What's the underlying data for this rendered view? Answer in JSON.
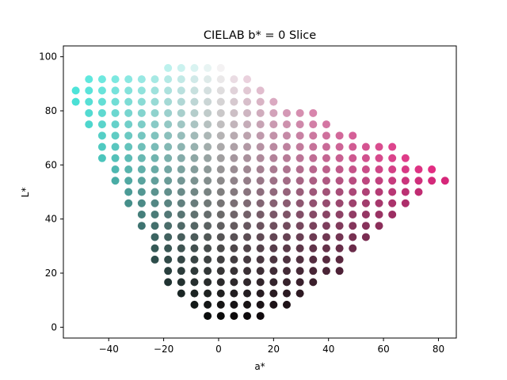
{
  "chart_data": {
    "type": "scatter",
    "title": "CIELAB b* = 0 Slice",
    "xlabel": "a*",
    "ylabel": "L*",
    "xlim": [
      -56.5,
      86.5
    ],
    "ylim": [
      -4,
      104
    ],
    "xticks": [
      -40,
      -20,
      0,
      20,
      40,
      60,
      80
    ],
    "yticks": [
      0,
      20,
      40,
      60,
      80,
      100
    ],
    "grid": false,
    "legend": "none",
    "sampling": {
      "a_start": -52,
      "a_step": 4.8,
      "L_start": 4.166,
      "L_step": 4.166,
      "description": "points plotted where color is within sRGB gamut"
    },
    "rows": [
      {
        "L": 4.17,
        "a_min": -4.4,
        "a_max": 15.4
      },
      {
        "L": 8.33,
        "a_min": -9.2,
        "a_max": 25.0
      },
      {
        "L": 12.5,
        "a_min": -14.0,
        "a_max": 29.8
      },
      {
        "L": 16.67,
        "a_min": -18.8,
        "a_max": 34.6
      },
      {
        "L": 20.83,
        "a_min": -18.8,
        "a_max": 44.2
      },
      {
        "L": 25.0,
        "a_min": -23.6,
        "a_max": 44.2
      },
      {
        "L": 29.17,
        "a_min": -23.6,
        "a_max": 49.0
      },
      {
        "L": 33.33,
        "a_min": -23.6,
        "a_max": 53.8
      },
      {
        "L": 37.5,
        "a_min": -28.4,
        "a_max": 58.6
      },
      {
        "L": 41.67,
        "a_min": -28.4,
        "a_max": 63.4
      },
      {
        "L": 45.83,
        "a_min": -33.2,
        "a_max": 68.2
      },
      {
        "L": 50.0,
        "a_min": -33.2,
        "a_max": 73.0
      },
      {
        "L": 54.17,
        "a_min": -38.0,
        "a_max": 82.6
      },
      {
        "L": 58.33,
        "a_min": -38.0,
        "a_max": 77.8
      },
      {
        "L": 62.5,
        "a_min": -42.8,
        "a_max": 68.2
      },
      {
        "L": 66.67,
        "a_min": -42.8,
        "a_max": 63.4
      },
      {
        "L": 70.83,
        "a_min": -42.8,
        "a_max": 49.0
      },
      {
        "L": 75.0,
        "a_min": -47.6,
        "a_max": 39.4
      },
      {
        "L": 79.17,
        "a_min": -47.6,
        "a_max": 34.6
      },
      {
        "L": 83.33,
        "a_min": -52.4,
        "a_max": 20.2
      },
      {
        "L": 87.5,
        "a_min": -52.4,
        "a_max": 15.4
      },
      {
        "L": 91.67,
        "a_min": -47.6,
        "a_max": 10.6
      },
      {
        "L": 95.83,
        "a_min": -18.8,
        "a_max": 1.0
      }
    ],
    "colors": {
      "negative_a_hue": "#00e6d6",
      "positive_a_hue": "#ea2a85",
      "neutral": "#808080"
    }
  }
}
